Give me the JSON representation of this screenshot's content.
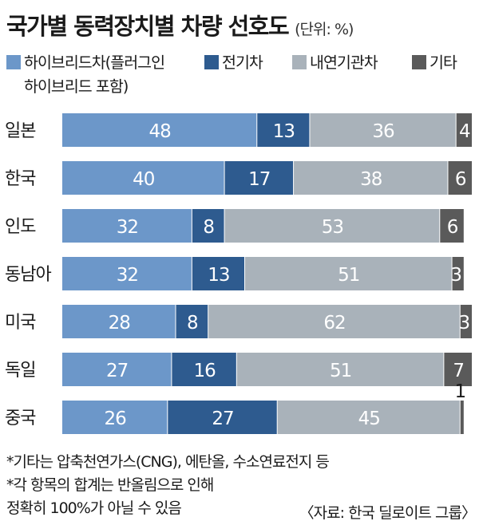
{
  "title": "국가별 동력장치별 차량 선호도",
  "unit": "(단위: %)",
  "legend": [
    {
      "label": "하이브리드차(플러그인 하이브리드 포함)",
      "line1": "하이브리드차(플러그인",
      "line2": "하이브리드 포함)",
      "color": "#6c97c9"
    },
    {
      "label": "전기차",
      "color": "#2e5b8f"
    },
    {
      "label": "내연기관차",
      "color": "#a9b2ba"
    },
    {
      "label": "기타",
      "color": "#5a5a5a"
    }
  ],
  "chart_data": {
    "type": "bar",
    "orientation": "horizontal",
    "stacked": true,
    "categories": [
      "일본",
      "한국",
      "인도",
      "동남아",
      "미국",
      "독일",
      "중국"
    ],
    "series": [
      {
        "name": "하이브리드차(플러그인 하이브리드 포함)",
        "values": [
          48,
          40,
          32,
          32,
          28,
          27,
          26
        ],
        "color": "#6c97c9"
      },
      {
        "name": "전기차",
        "values": [
          13,
          17,
          8,
          13,
          8,
          16,
          27
        ],
        "color": "#2e5b8f"
      },
      {
        "name": "내연기관차",
        "values": [
          36,
          38,
          53,
          51,
          62,
          51,
          45
        ],
        "color": "#a9b2ba"
      },
      {
        "name": "기타",
        "values": [
          4,
          6,
          6,
          3,
          3,
          7,
          1
        ],
        "color": "#5a5a5a"
      }
    ],
    "xlim": [
      0,
      101
    ],
    "unit": "%"
  },
  "footnotes": [
    "*기타는 압축천연가스(CNG), 에탄올, 수소연료전지 등",
    "*각 항목의 합계는 반올림으로 인해",
    "정확히 100%가 아닐 수 있음"
  ],
  "source": "〈자료: 한국 딜로이트 그룹〉"
}
